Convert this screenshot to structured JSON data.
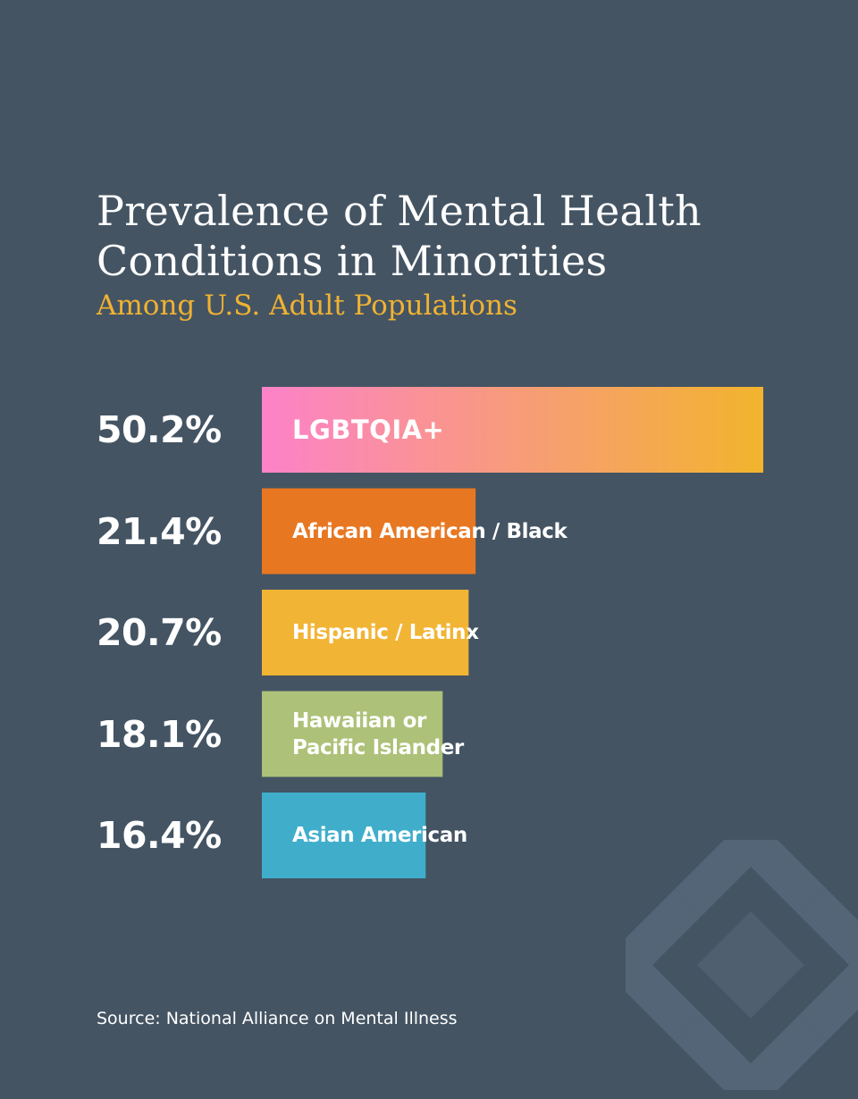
{
  "title": "Prevalence of Mental Health Conditions in Minorities",
  "subtitle": "Among U.S. Adult Populations",
  "source": "Source: National Alliance on Mental Illness",
  "colors": {
    "background": "#445463",
    "accent": "#f0b232",
    "logo": "#56677a"
  },
  "icons": {
    "watermark": "organization-logo-watermark"
  },
  "chart_data": {
    "type": "bar",
    "orientation": "horizontal",
    "categories": [
      "LGBTQIA+",
      "African American / Black",
      "Hispanic / Latinx",
      "Hawaiian or\nPacific Islander",
      "Asian American"
    ],
    "values": [
      50.2,
      21.4,
      20.7,
      18.1,
      16.4
    ],
    "value_labels": [
      "50.2%",
      "21.4%",
      "20.7%",
      "18.1%",
      "16.4%"
    ],
    "bar_colors": [
      [
        "#fd82c9",
        "#f2b42d"
      ],
      [
        "#e87722",
        "#e87722"
      ],
      [
        "#f1b434",
        "#f1b434"
      ],
      [
        "#adc178",
        "#adc178"
      ],
      [
        "#40aecb",
        "#40aecb"
      ]
    ],
    "unit": "%",
    "grid": false,
    "legend": "none"
  }
}
